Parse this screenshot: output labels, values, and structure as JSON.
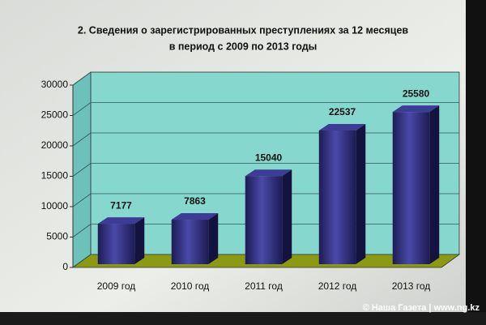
{
  "chart_data": {
    "type": "bar3d",
    "title": "2. Сведения о зарегистрированных преступлениях за 12 месяцев",
    "subtitle": "в период с 2009 по 2013 годы",
    "categories": [
      "2009 год",
      "2010 год",
      "2011 год",
      "2012 год",
      "2013 год"
    ],
    "values": [
      7177,
      7863,
      15040,
      22537,
      25580
    ],
    "color": "#2b2a78",
    "ylim": [
      0,
      30000
    ],
    "yticks": [
      0,
      5000,
      10000,
      15000,
      20000,
      25000,
      30000
    ],
    "grid": true,
    "credit": "© Наша Газета | www.ng.kz"
  }
}
